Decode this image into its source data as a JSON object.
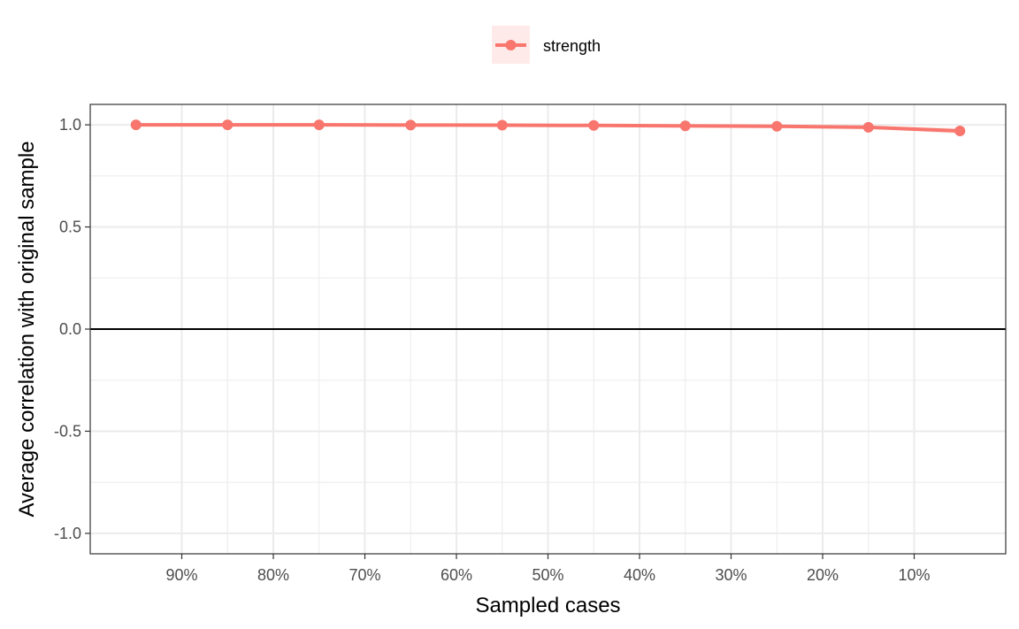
{
  "chart_data": {
    "type": "line",
    "title": "",
    "xlabel": "Sampled cases",
    "ylabel": "Average correlation with original sample",
    "x": [
      95,
      85,
      75,
      65,
      55,
      45,
      35,
      25,
      15,
      5
    ],
    "xlim": [
      100,
      0
    ],
    "x_ticks": [
      90,
      80,
      70,
      60,
      50,
      40,
      30,
      20,
      10
    ],
    "x_tick_labels": [
      "90%",
      "80%",
      "70%",
      "60%",
      "50%",
      "40%",
      "30%",
      "20%",
      "10%"
    ],
    "ylim": [
      -1.1,
      1.1
    ],
    "y_ticks": [
      1.0,
      0.5,
      0.0,
      -0.5,
      -1.0
    ],
    "y_tick_labels": [
      "1.0",
      "0.5",
      "0.0",
      "-0.5",
      "-1.0"
    ],
    "reference_line_y": 0,
    "grid": true,
    "legend_position": "top",
    "series": [
      {
        "name": "strength",
        "color": "#F8766D",
        "values": [
          1.0,
          1.0,
          1.0,
          0.999,
          0.998,
          0.997,
          0.995,
          0.993,
          0.988,
          0.97
        ],
        "lower": [
          1.0,
          1.0,
          0.999,
          0.998,
          0.997,
          0.995,
          0.993,
          0.99,
          0.982,
          0.955
        ],
        "upper": [
          1.0,
          1.0,
          1.0,
          1.0,
          0.999,
          0.998,
          0.997,
          0.996,
          0.994,
          0.985
        ]
      }
    ]
  }
}
